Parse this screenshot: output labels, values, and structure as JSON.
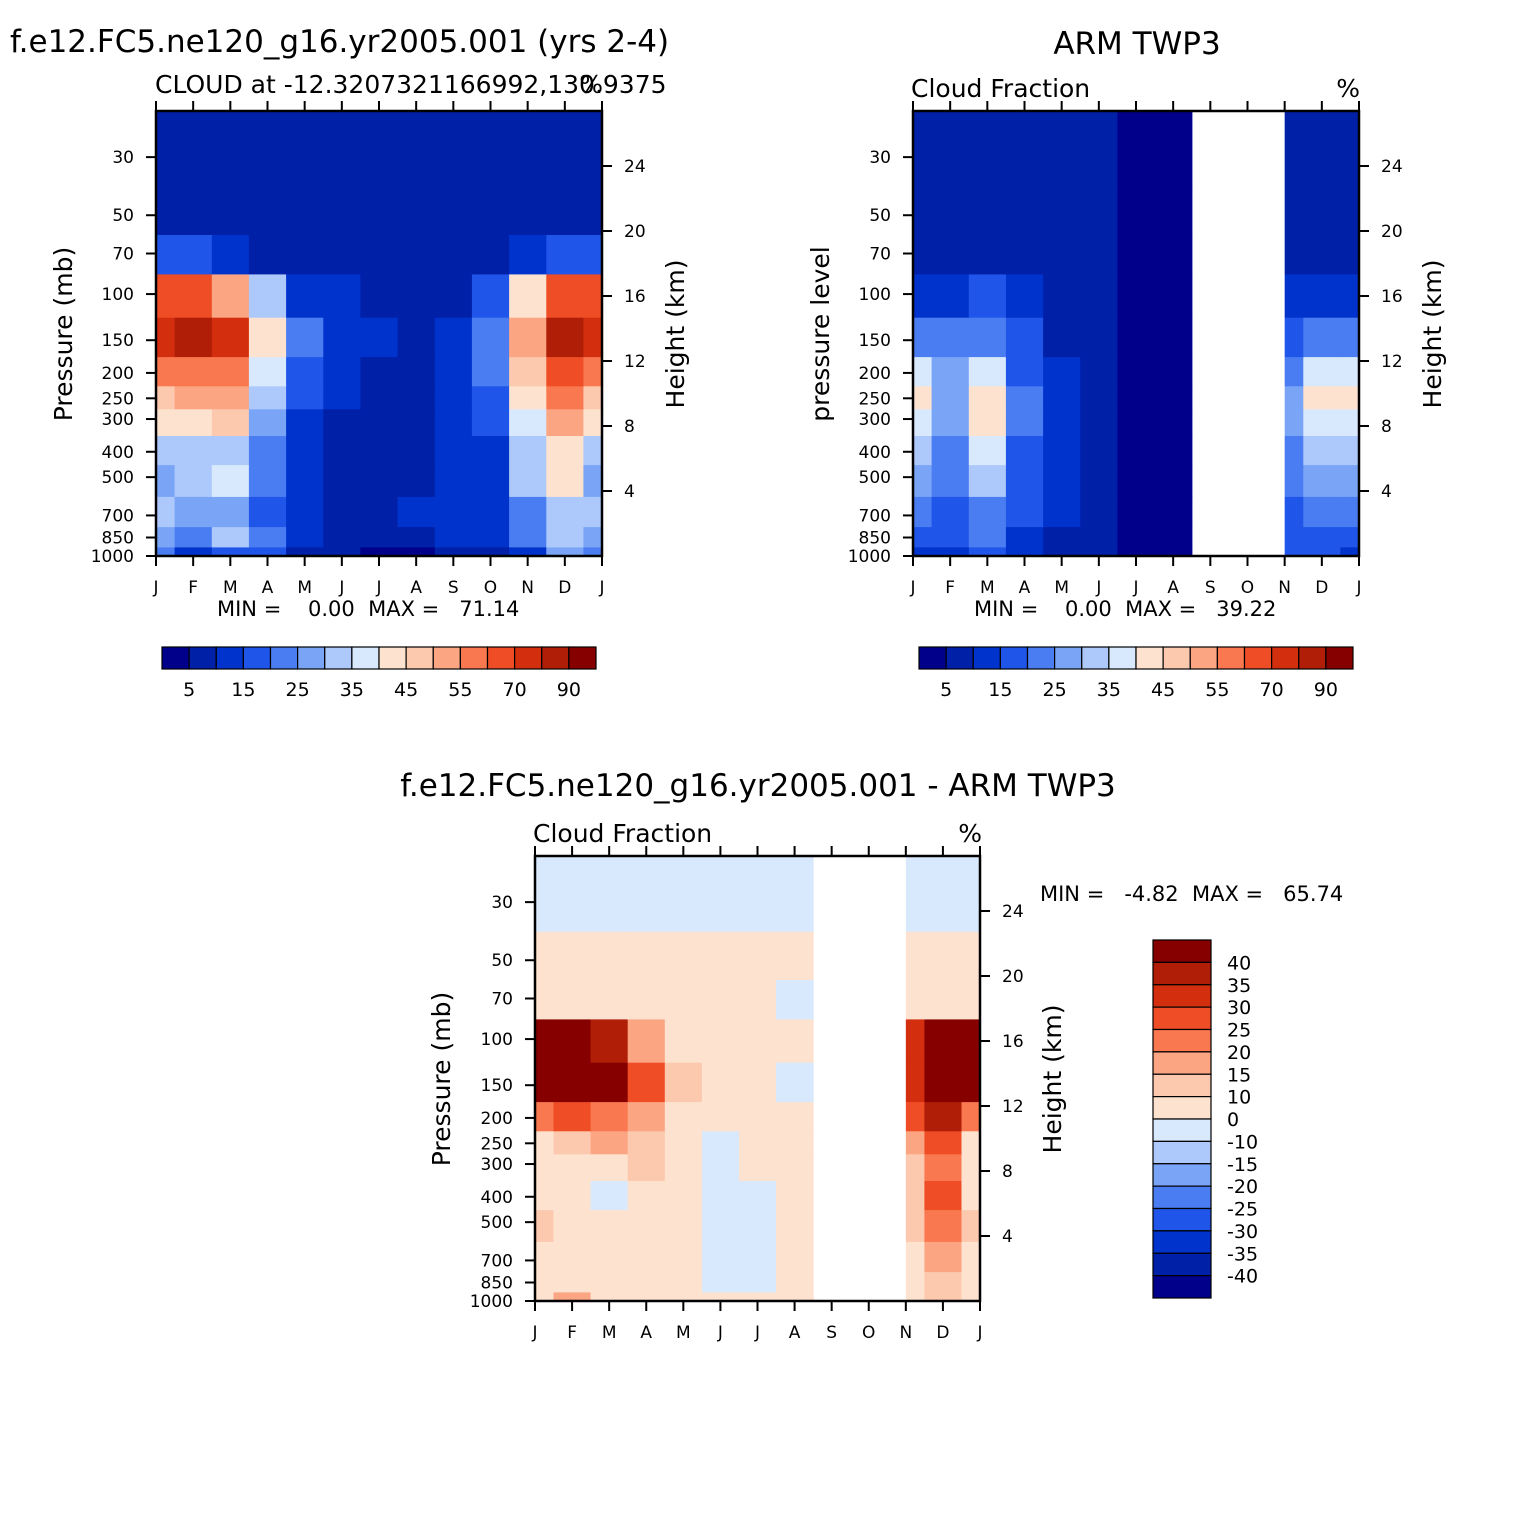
{
  "panels": [
    {
      "title": "f.e12.FC5.ne120_g16.yr2005.001 (yrs 2-4)",
      "subtitle_left": "CLOUD at -12.3207321166992,130.9375",
      "subtitle_right": "%",
      "ylabel_left": "Pressure (mb)",
      "ylabel_right": "Height (km)",
      "stats": "MIN =    0.00  MAX =   71.14"
    },
    {
      "title": "ARM TWP3",
      "subtitle_left": "Cloud Fraction",
      "subtitle_right": "%",
      "ylabel_left": "pressure level",
      "ylabel_right": "Height (km)",
      "stats": "MIN =    0.00  MAX =   39.22"
    },
    {
      "title": "f.e12.FC5.ne120_g16.yr2005.001 - ARM TWP3",
      "subtitle_left": "Cloud Fraction",
      "subtitle_right": "%",
      "ylabel_left": "Pressure (mb)",
      "ylabel_right": "Height (km)",
      "stats": "MIN =   -4.82  MAX =   65.74"
    }
  ],
  "chart_data": [
    {
      "type": "heatmap",
      "title": "f.e12.FC5.ne120_g16.yr2005.001 (yrs 2-4)",
      "x_ticks": [
        "J",
        "F",
        "M",
        "A",
        "M",
        "J",
        "J",
        "A",
        "S",
        "O",
        "N",
        "D",
        "J"
      ],
      "y_left_ticks": [
        30,
        50,
        70,
        100,
        150,
        200,
        250,
        300,
        400,
        500,
        700,
        850,
        1000
      ],
      "y_left_scale": "log",
      "y_right_ticks": [
        4,
        8,
        12,
        16,
        20,
        24
      ],
      "min": 0.0,
      "max": 71.14,
      "colorbar": {
        "levels": [
          5,
          15,
          25,
          35,
          45,
          55,
          70,
          90
        ],
        "colors": [
          "#00008b",
          "#0020a8",
          "#0033cc",
          "#1f55e8",
          "#4b7df2",
          "#7aa5f7",
          "#adc9fb",
          "#d9e9fd",
          "#fde3cf",
          "#fcc9ae",
          "#fba583",
          "#f9784f",
          "#ee4d25",
          "#d32f0e",
          "#b01e08",
          "#870000"
        ]
      },
      "months": [
        "J",
        "F",
        "M",
        "A",
        "M",
        "J",
        "J",
        "A",
        "S",
        "O",
        "N",
        "D",
        "J"
      ],
      "pressure_levels": [
        1000,
        850,
        700,
        500,
        400,
        300,
        250,
        200,
        150,
        100,
        70,
        50,
        30
      ],
      "values": [
        [
          15,
          5,
          12,
          10,
          3,
          3,
          2,
          2,
          4,
          3,
          8,
          20,
          15
        ],
        [
          22,
          18,
          25,
          15,
          6,
          3,
          3,
          4,
          6,
          7,
          15,
          25,
          22
        ],
        [
          25,
          20,
          22,
          12,
          6,
          3,
          3,
          5,
          8,
          8,
          18,
          28,
          25
        ],
        [
          22,
          25,
          30,
          15,
          6,
          3,
          3,
          3,
          5,
          8,
          25,
          35,
          22
        ],
        [
          28,
          25,
          28,
          15,
          7,
          3,
          3,
          3,
          5,
          8,
          25,
          38,
          28
        ],
        [
          35,
          38,
          40,
          20,
          9,
          4,
          3,
          3,
          5,
          10,
          30,
          45,
          35
        ],
        [
          40,
          45,
          45,
          25,
          10,
          5,
          3,
          3,
          6,
          12,
          35,
          50,
          40
        ],
        [
          50,
          52,
          50,
          32,
          12,
          6,
          3,
          3,
          6,
          15,
          40,
          58,
          50
        ],
        [
          65,
          70,
          62,
          38,
          15,
          9,
          6,
          3,
          5,
          15,
          45,
          70,
          65
        ],
        [
          55,
          55,
          45,
          25,
          9,
          5,
          3,
          3,
          3,
          10,
          35,
          55,
          55
        ],
        [
          10,
          10,
          6,
          4,
          3,
          3,
          3,
          3,
          3,
          4,
          8,
          12,
          10
        ],
        [
          3,
          3,
          3,
          3,
          3,
          3,
          3,
          3,
          3,
          3,
          3,
          3,
          3
        ],
        [
          3,
          3,
          3,
          3,
          3,
          3,
          3,
          3,
          3,
          3,
          3,
          3,
          3
        ]
      ]
    },
    {
      "type": "heatmap",
      "title": "ARM TWP3",
      "x_ticks": [
        "J",
        "F",
        "M",
        "A",
        "M",
        "J",
        "J",
        "A",
        "S",
        "O",
        "N",
        "D",
        "J"
      ],
      "y_left_ticks": [
        30,
        50,
        70,
        100,
        150,
        200,
        250,
        300,
        400,
        500,
        700,
        850,
        1000
      ],
      "y_left_scale": "log",
      "y_right_ticks": [
        4,
        8,
        12,
        16,
        20,
        24
      ],
      "min": 0.0,
      "max": 39.22,
      "missing_months": [
        "S",
        "O"
      ],
      "colorbar": {
        "levels": [
          5,
          15,
          25,
          35,
          45,
          55,
          70,
          90
        ],
        "colors": [
          "#00008b",
          "#0020a8",
          "#0033cc",
          "#1f55e8",
          "#4b7df2",
          "#7aa5f7",
          "#adc9fb",
          "#d9e9fd",
          "#fde3cf",
          "#fcc9ae",
          "#fba583",
          "#f9784f",
          "#ee4d25",
          "#d32f0e",
          "#b01e08",
          "#870000"
        ]
      },
      "months": [
        "J",
        "F",
        "M",
        "A",
        "M",
        "J",
        "J",
        "A",
        "S",
        "O",
        "N",
        "D",
        "J"
      ],
      "pressure_levels": [
        1000,
        850,
        700,
        500,
        400,
        300,
        250,
        200,
        150,
        100,
        70,
        50,
        30
      ],
      "values": [
        [
          8,
          5,
          10,
          6,
          3,
          3,
          2,
          2,
          null,
          null,
          10,
          12,
          8
        ],
        [
          12,
          10,
          15,
          8,
          4,
          3,
          2,
          2,
          null,
          null,
          12,
          14,
          12
        ],
        [
          16,
          12,
          18,
          10,
          5,
          3,
          2,
          2,
          null,
          null,
          14,
          18,
          16
        ],
        [
          20,
          15,
          25,
          12,
          5,
          3,
          2,
          2,
          null,
          null,
          16,
          22,
          20
        ],
        [
          25,
          18,
          30,
          14,
          6,
          3,
          2,
          2,
          null,
          null,
          18,
          26,
          25
        ],
        [
          32,
          22,
          35,
          16,
          6,
          3,
          2,
          2,
          null,
          null,
          20,
          32,
          32
        ],
        [
          35,
          24,
          38,
          16,
          6,
          3,
          2,
          2,
          null,
          null,
          20,
          35,
          35
        ],
        [
          30,
          22,
          30,
          14,
          5,
          3,
          2,
          2,
          null,
          null,
          18,
          30,
          30
        ],
        [
          18,
          16,
          18,
          10,
          4,
          3,
          2,
          2,
          null,
          null,
          14,
          18,
          18
        ],
        [
          8,
          8,
          10,
          5,
          3,
          3,
          2,
          2,
          null,
          null,
          8,
          8,
          8
        ],
        [
          3,
          3,
          3,
          3,
          3,
          3,
          2,
          2,
          null,
          null,
          3,
          3,
          3
        ],
        [
          3,
          3,
          3,
          3,
          3,
          3,
          2,
          2,
          null,
          null,
          3,
          3,
          3
        ],
        [
          3,
          3,
          3,
          3,
          3,
          3,
          2,
          2,
          null,
          null,
          3,
          3,
          3
        ]
      ]
    },
    {
      "type": "heatmap",
      "title": "f.e12.FC5.ne120_g16.yr2005.001 - ARM TWP3",
      "x_ticks": [
        "J",
        "F",
        "M",
        "A",
        "M",
        "J",
        "J",
        "A",
        "S",
        "O",
        "N",
        "D",
        "J"
      ],
      "y_left_ticks": [
        30,
        50,
        70,
        100,
        150,
        200,
        250,
        300,
        400,
        500,
        700,
        850,
        1000
      ],
      "y_left_scale": "log",
      "y_right_ticks": [
        4,
        8,
        12,
        16,
        20,
        24
      ],
      "min": -4.82,
      "max": 65.74,
      "missing_months": [
        "S",
        "O"
      ],
      "colorbar": {
        "labels": [
          "40",
          "35",
          "30",
          "25",
          "20",
          "15",
          "10",
          "0",
          "-10",
          "-15",
          "-20",
          "-25",
          "-30",
          "-35",
          "-40"
        ],
        "colors": [
          "#870000",
          "#b01e08",
          "#d32f0e",
          "#ee4d25",
          "#f9784f",
          "#fba583",
          "#fcc9ae",
          "#fde3cf",
          "#d9e9fd",
          "#adc9fb",
          "#7aa5f7",
          "#4b7df2",
          "#1f55e8",
          "#0033cc",
          "#0020a8",
          "#00008b"
        ]
      },
      "months": [
        "J",
        "F",
        "M",
        "A",
        "M",
        "J",
        "J",
        "A",
        "S",
        "O",
        "N",
        "D",
        "J"
      ],
      "pressure_levels": [
        1000,
        850,
        700,
        500,
        400,
        300,
        250,
        200,
        150,
        100,
        70,
        50,
        30
      ],
      "values": [
        [
          7,
          15,
          3,
          5,
          2,
          1,
          1,
          2,
          null,
          null,
          5,
          10,
          7
        ],
        [
          5,
          4,
          3,
          8,
          3,
          -1,
          -1,
          2,
          null,
          null,
          8,
          12,
          5
        ],
        [
          5,
          4,
          3,
          3,
          2,
          -1,
          -1,
          2,
          null,
          null,
          8,
          15,
          5
        ],
        [
          12,
          8,
          3,
          3,
          2,
          -1,
          -1,
          2,
          null,
          null,
          12,
          20,
          12
        ],
        [
          5,
          3,
          -1,
          3,
          2,
          -1,
          -1,
          2,
          null,
          null,
          12,
          25,
          5
        ],
        [
          5,
          6,
          8,
          10,
          4,
          -1,
          2,
          2,
          null,
          null,
          12,
          20,
          5
        ],
        [
          8,
          12,
          15,
          12,
          4,
          -1,
          2,
          2,
          null,
          null,
          18,
          25,
          8
        ],
        [
          20,
          25,
          22,
          15,
          5,
          3,
          2,
          2,
          null,
          null,
          25,
          35,
          20
        ],
        [
          45,
          50,
          42,
          25,
          10,
          6,
          3,
          -1,
          null,
          null,
          30,
          48,
          45
        ],
        [
          48,
          45,
          35,
          18,
          6,
          3,
          2,
          2,
          null,
          null,
          30,
          48,
          48
        ],
        [
          5,
          5,
          3,
          3,
          2,
          3,
          2,
          -1,
          null,
          null,
          5,
          6,
          5
        ],
        [
          2,
          2,
          2,
          2,
          2,
          2,
          2,
          2,
          null,
          null,
          2,
          2,
          2
        ],
        [
          -1,
          -1,
          -1,
          -1,
          -1,
          -1,
          -1,
          -1,
          null,
          null,
          -1,
          -1,
          -1
        ]
      ]
    }
  ]
}
